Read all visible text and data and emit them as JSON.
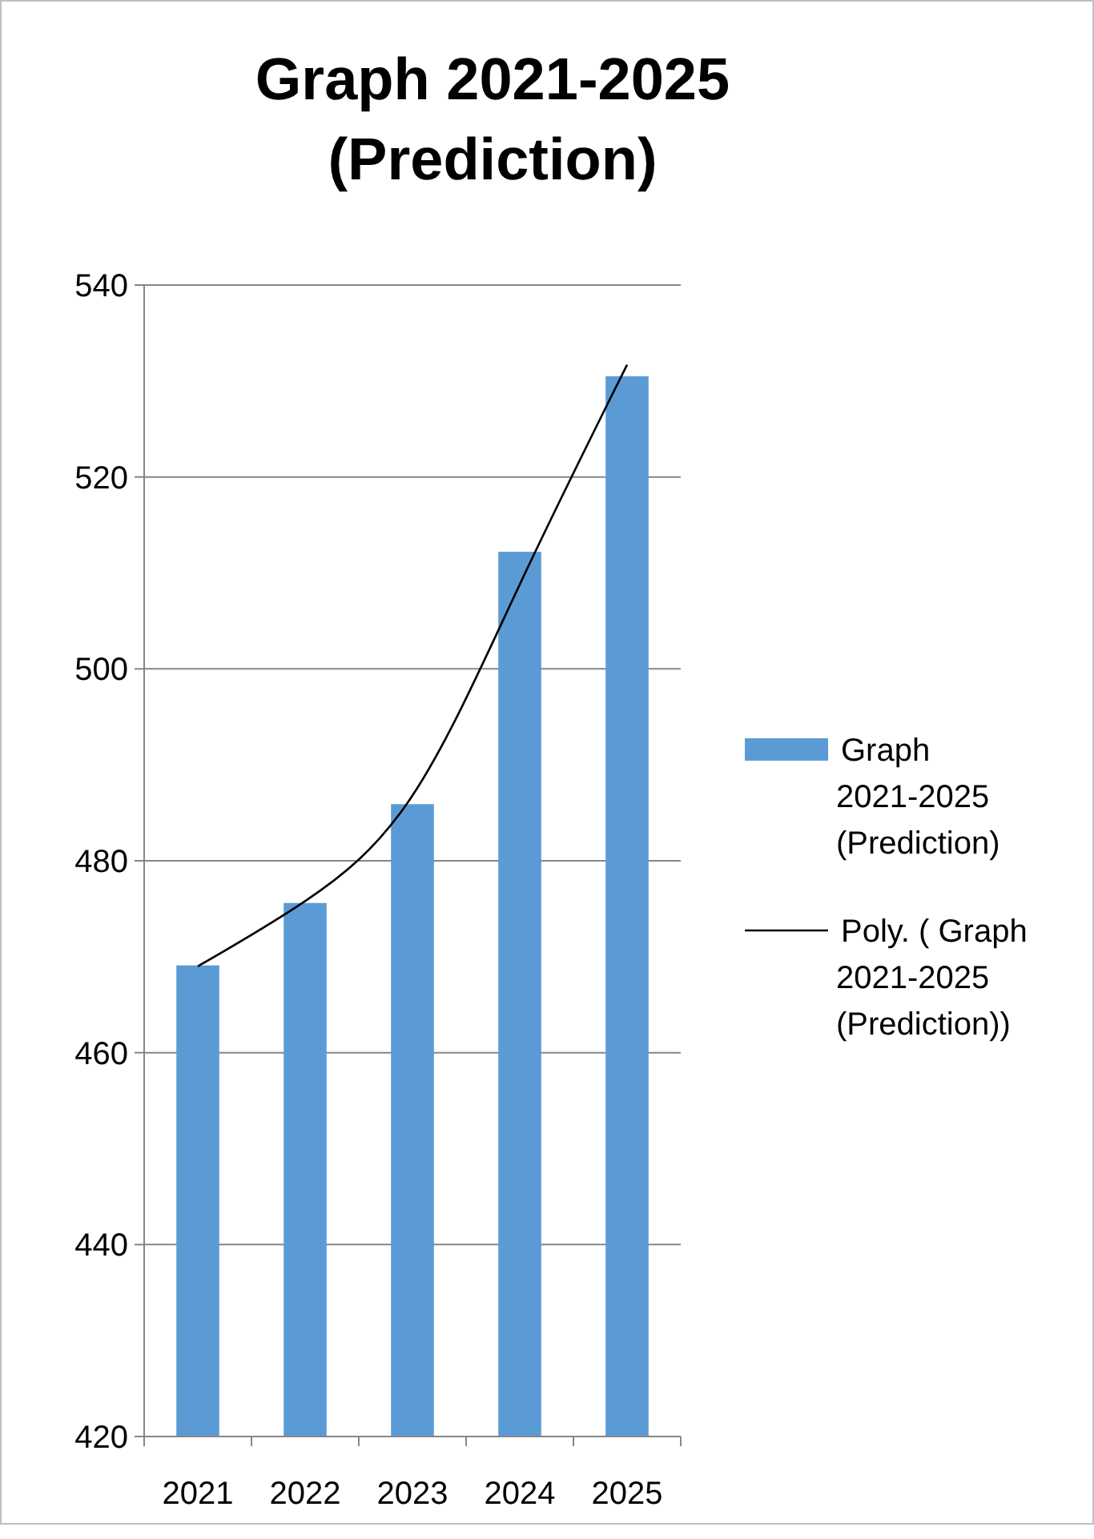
{
  "chart_data": {
    "type": "bar",
    "title": "Graph 2021-2025 (Prediction)",
    "categories": [
      "2021",
      "2022",
      "2023",
      "2024",
      "2025"
    ],
    "series": [
      {
        "name": "Graph 2021-2025 (Prediction)",
        "color": "#5b9bd5",
        "values": [
          469.1,
          475.6,
          485.9,
          512.2,
          530.5
        ]
      },
      {
        "name": "Poly. ( Graph 2021-2025 (Prediction))",
        "type": "line",
        "color": "#000000",
        "values": [
          469,
          475.8,
          486.8,
          508.8,
          531.7
        ]
      }
    ],
    "ylim": [
      420,
      540
    ],
    "yticks": [
      420,
      440,
      460,
      480,
      500,
      520,
      540
    ],
    "grid": "y",
    "legend": "right"
  }
}
